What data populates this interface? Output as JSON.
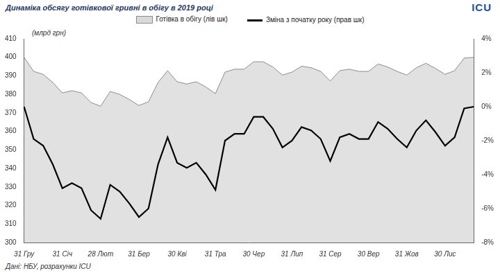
{
  "chart_data": {
    "type": "line",
    "title": "Динаміка обсягу готівкової гривні в обігу в 2019 році",
    "y_label": "(млрд грн)",
    "annotations": [
      {
        "text": "Дані: НБУ, розрахунки ICU"
      },
      {
        "text": "ICU"
      }
    ],
    "categories": [
      "31 Гру",
      null,
      null,
      null,
      "31 Січ",
      null,
      null,
      null,
      "28 Лют",
      null,
      null,
      null,
      "31 Бер",
      null,
      null,
      null,
      "30 Кві",
      null,
      null,
      null,
      "31 Тра",
      null,
      null,
      null,
      "30 Чер",
      null,
      null,
      null,
      "31 Лип",
      null,
      null,
      null,
      "31 Сер",
      null,
      null,
      null,
      "30 Вер",
      null,
      null,
      null,
      "31 Жов",
      null,
      null,
      null,
      "30 Лис",
      null,
      null,
      null
    ],
    "series": [
      {
        "name": "Готівка в обігу (лів шк)",
        "type": "area",
        "color": "#d9d9d9",
        "values": [
          400,
          392.4,
          390.8,
          386.4,
          380.8,
          382,
          380.8,
          375.6,
          373.6,
          381.6,
          380,
          377.2,
          374,
          376,
          386.4,
          392.8,
          386.8,
          385.6,
          386.8,
          384,
          380.4,
          392,
          393.6,
          393.6,
          397.6,
          397.6,
          394.8,
          390.4,
          392,
          395.2,
          394.4,
          392.4,
          387.2,
          392.8,
          393.6,
          392.4,
          392.4,
          396.4,
          394.8,
          392.4,
          390.4,
          394.4,
          396.8,
          394,
          390.8,
          392.8,
          399.6,
          400
        ]
      },
      {
        "name": "Зміна з початку року (прав шк)",
        "type": "line",
        "color": "#000000",
        "axis": "y2",
        "values": [
          0,
          -1.9,
          -2.3,
          -3.4,
          -4.8,
          -4.5,
          -4.8,
          -6.1,
          -6.6,
          -4.6,
          -5.0,
          -5.7,
          -6.5,
          -6.0,
          -3.4,
          -1.8,
          -3.3,
          -3.6,
          -3.3,
          -4.0,
          -4.9,
          -2.0,
          -1.6,
          -1.6,
          -0.6,
          -0.6,
          -1.3,
          -2.4,
          -2.0,
          -1.2,
          -1.4,
          -1.9,
          -3.2,
          -1.8,
          -1.6,
          -1.9,
          -1.9,
          -0.9,
          -1.3,
          -1.9,
          -2.4,
          -1.4,
          -0.8,
          -1.5,
          -2.3,
          -1.8,
          -0.1,
          0
        ]
      }
    ],
    "ylim": [
      300,
      410
    ],
    "yticks": [
      300,
      310,
      320,
      330,
      340,
      350,
      360,
      370,
      380,
      390,
      400,
      410
    ],
    "y2lim": [
      -8,
      4
    ],
    "y2ticks": [
      {
        "value": -8,
        "label": "-8%"
      },
      {
        "value": -6,
        "label": "-6%"
      },
      {
        "value": -4,
        "label": "-4%"
      },
      {
        "value": -2,
        "label": "-2%"
      },
      {
        "value": 0,
        "label": "0%"
      },
      {
        "value": 2,
        "label": "2%"
      },
      {
        "value": 4,
        "label": "4%"
      }
    ],
    "grid": false,
    "legend": "top"
  }
}
